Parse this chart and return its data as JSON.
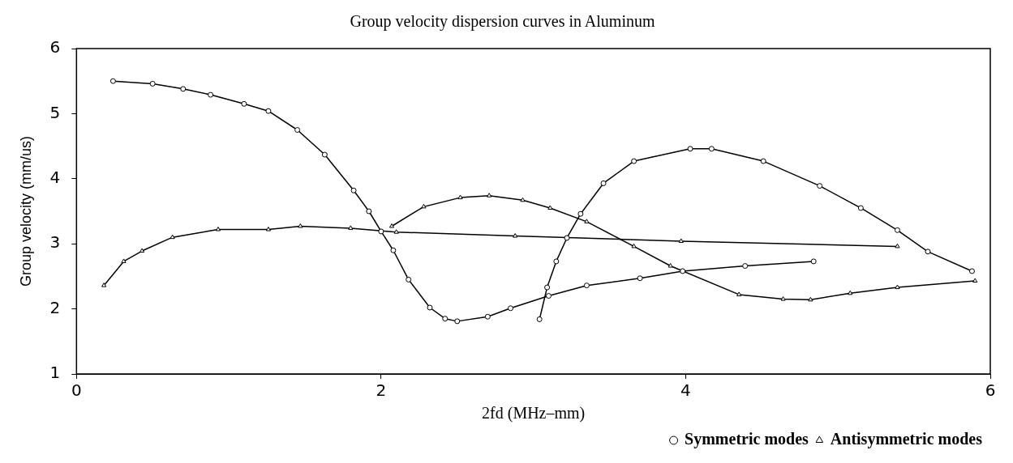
{
  "chart_data": {
    "type": "line",
    "title": "Group velocity dispersion curves in Aluminum",
    "xlabel": "2fd (MHz–mm)",
    "ylabel": "Group velocity (mm/us)",
    "xlim": [
      0,
      6
    ],
    "xticks": [
      0,
      2,
      4,
      6
    ],
    "ylim": [
      1,
      6
    ],
    "yticks": [
      1,
      2,
      3,
      4,
      5,
      6
    ],
    "grid": false,
    "legend": "bottom right",
    "series": [
      {
        "name": "Symmetric modes",
        "color": "#000000",
        "marker": "circle",
        "x": [
          0.24,
          0.5,
          0.7,
          0.88,
          1.1,
          1.26,
          1.45,
          1.63,
          1.82,
          1.92,
          2.0,
          2.08,
          2.18,
          2.32,
          2.42,
          2.5,
          2.7,
          2.85,
          3.1,
          3.35,
          3.7,
          3.98,
          4.39,
          4.84
        ],
        "values": [
          5.5,
          5.46,
          5.38,
          5.29,
          5.15,
          5.04,
          4.75,
          4.37,
          3.82,
          3.5,
          3.19,
          2.9,
          2.45,
          2.02,
          1.85,
          1.81,
          1.88,
          2.01,
          2.2,
          2.36,
          2.47,
          2.58,
          2.66,
          2.73
        ]
      },
      {
        "color": "#000000",
        "marker": "circle",
        "x": [
          3.04,
          3.09,
          3.15,
          3.22,
          3.31,
          3.46,
          3.66,
          4.03,
          4.17,
          4.51,
          4.88,
          5.15,
          5.39,
          5.59,
          5.88
        ],
        "values": [
          1.84,
          2.33,
          2.73,
          3.09,
          3.46,
          3.93,
          4.27,
          4.46,
          4.46,
          4.27,
          3.89,
          3.55,
          3.21,
          2.88,
          2.58
        ]
      },
      {
        "name": "Antisymmetric modes",
        "color": "#000000",
        "marker": "triangle",
        "x": [
          0.18,
          0.31,
          0.43,
          0.63,
          0.93,
          1.26,
          1.47,
          1.8,
          2.1,
          2.88,
          3.97,
          5.39
        ],
        "values": [
          2.36,
          2.73,
          2.89,
          3.1,
          3.22,
          3.22,
          3.27,
          3.24,
          3.18,
          3.12,
          3.04,
          2.96
        ]
      },
      {
        "color": "#000000",
        "marker": "triangle",
        "x": [
          2.07,
          2.28,
          2.52,
          2.71,
          2.93,
          3.11,
          3.35,
          3.66,
          3.9,
          4.35,
          4.64,
          4.82,
          5.08,
          5.39,
          5.9
        ],
        "values": [
          3.27,
          3.57,
          3.71,
          3.74,
          3.67,
          3.55,
          3.34,
          2.96,
          2.66,
          2.22,
          2.15,
          2.14,
          2.24,
          2.33,
          2.43
        ]
      }
    ]
  }
}
